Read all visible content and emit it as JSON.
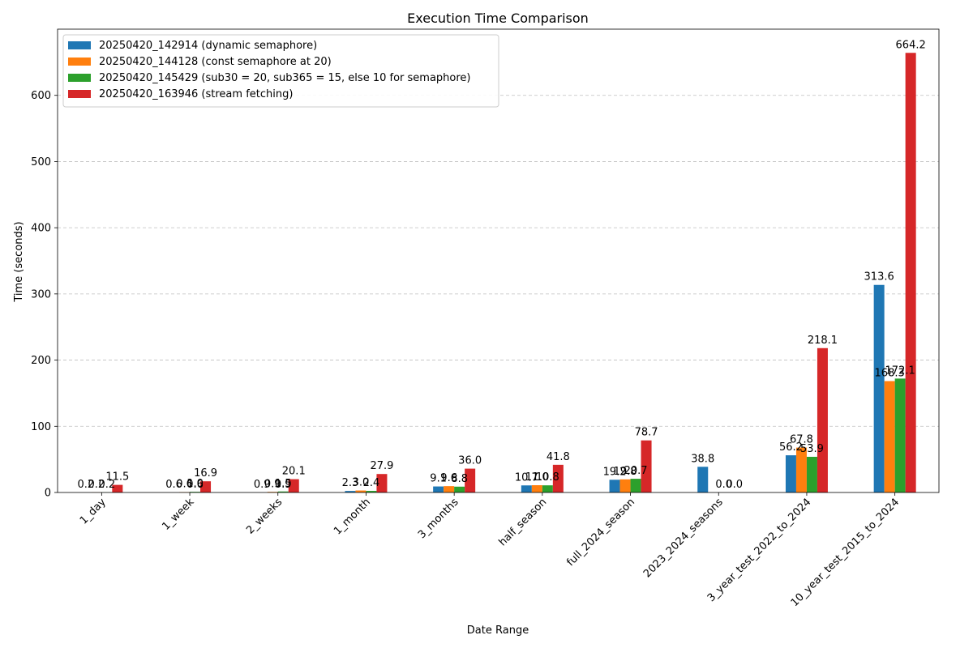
{
  "chart_data": {
    "type": "bar",
    "title": "Execution Time Comparison",
    "xlabel": "Date Range",
    "ylabel": "Time (seconds)",
    "ylim": [
      0,
      700
    ],
    "yticks": [
      0,
      100,
      200,
      300,
      400,
      500,
      600
    ],
    "grid": "y-dashed",
    "legend_position": "top-left",
    "categories": [
      "1_day",
      "1_week",
      "2_weeks",
      "1_month",
      "3_months",
      "half_season",
      "full_2024_season",
      "2023_2024_seasons",
      "3_year_test_2022_to_2024",
      "10_year_test_2015_to_2024"
    ],
    "series": [
      {
        "name": "20250420_142914 (dynamic semaphore)",
        "color": "#1f77b4",
        "values": [
          null,
          null,
          null,
          2.3,
          9.1,
          10.7,
          19.2,
          38.8,
          56.2,
          313.6
        ],
        "labels": [
          "",
          "",
          "",
          "2.3",
          "9.1",
          "10.7",
          "19.2",
          "38.8",
          "56.2",
          "313.6"
        ]
      },
      {
        "name": "20250420_144128 (const semaphore at 20)",
        "color": "#ff7f0e",
        "values": [
          0.2,
          0.6,
          0.9,
          3.0,
          9.6,
          11.0,
          19.8,
          null,
          67.8,
          168.3
        ],
        "labels": [
          "0.2",
          "0.6",
          "0.9",
          "3.0",
          "9.6",
          "11.0",
          "19.8",
          "",
          "67.8",
          "168.3"
        ]
      },
      {
        "name": "20250420_145429 (sub30 = 20, sub365 = 15, else 10 for semaphore)",
        "color": "#2ca02c",
        "values": [
          0.2,
          1.0,
          1.5,
          2.4,
          8.8,
          10.8,
          20.7,
          0.0,
          53.9,
          172.1
        ],
        "labels": [
          "0.2",
          "1.0",
          "1.5",
          "2.4",
          "8.8",
          "10.8",
          "20.7",
          "0.0",
          "53.9",
          "172.1"
        ]
      },
      {
        "name": "20250420_163946 (stream fetching)",
        "color": "#d62728",
        "values": [
          11.5,
          16.9,
          20.1,
          27.9,
          36.0,
          41.8,
          78.7,
          0.0,
          218.1,
          664.2
        ],
        "labels": [
          "11.5",
          "16.9",
          "20.1",
          "27.9",
          "36.0",
          "41.8",
          "78.7",
          "0.0",
          "218.1",
          "664.2"
        ]
      }
    ],
    "extra_labels": [
      {
        "category": "1_day",
        "series": 0,
        "text": "0.2"
      },
      {
        "category": "1_week",
        "series": 0,
        "text": "0.6"
      },
      {
        "category": "2_weeks",
        "series": 0,
        "text": "0.9"
      },
      {
        "category": "2_weeks",
        "series": 2,
        "text": "0.9"
      },
      {
        "category": "1_week",
        "series": 2,
        "text": "0.6"
      }
    ]
  }
}
